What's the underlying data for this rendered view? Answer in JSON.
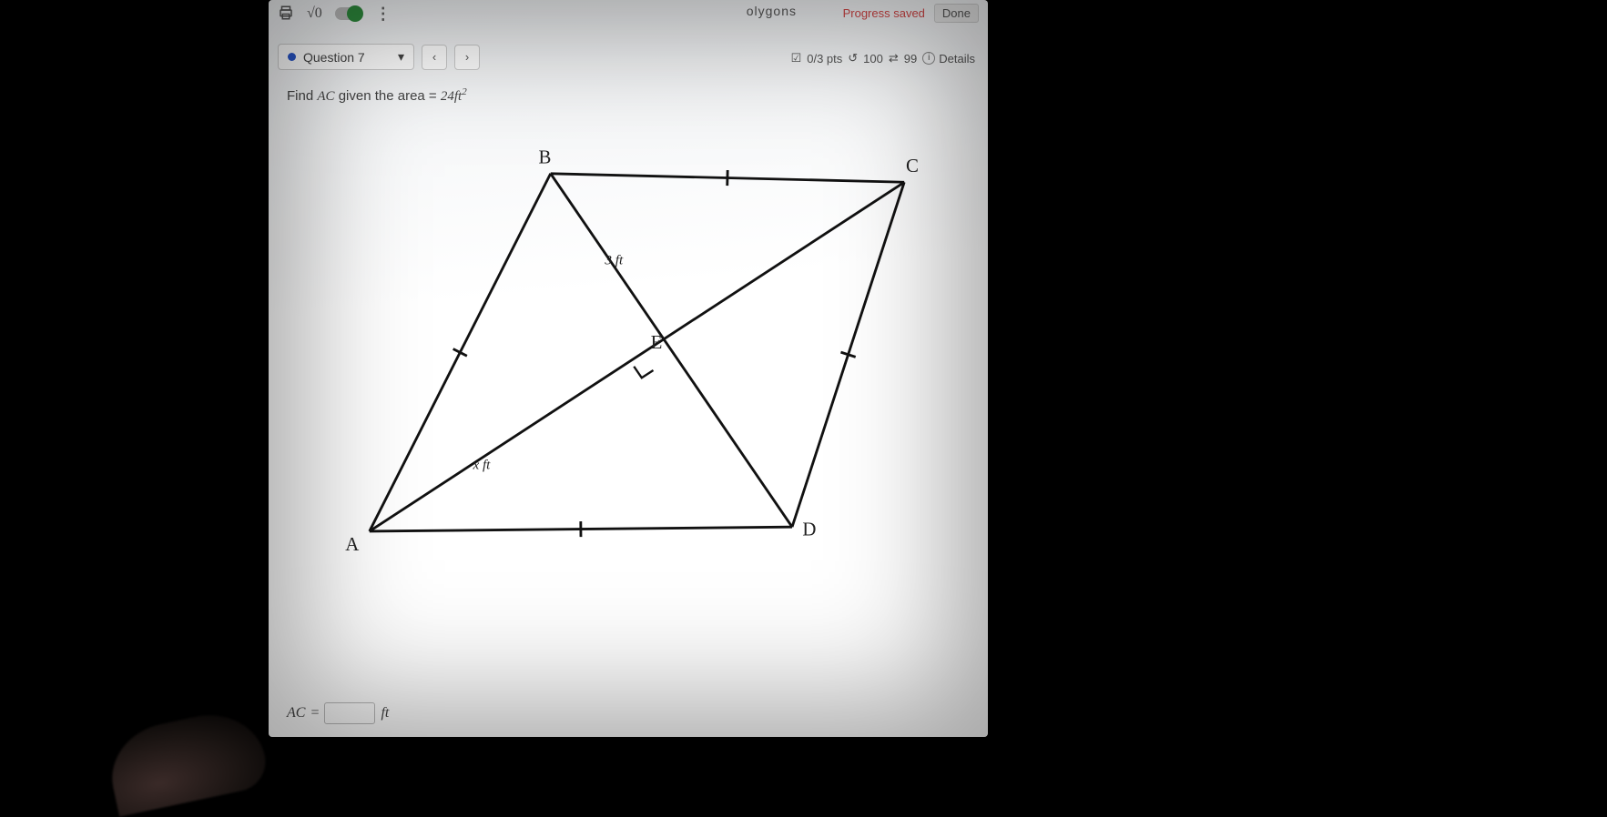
{
  "toolbar": {
    "sqrt_label": "√0",
    "breadcrumb_suffix": "olygons",
    "progress_label": "Progress saved",
    "done_label": "Done"
  },
  "question": {
    "label": "Question 7",
    "prev_symbol": "‹",
    "next_symbol": "›",
    "points_text": "0/3 pts",
    "retry_count": "100",
    "attempts_left": "99",
    "details_label": "Details"
  },
  "problem": {
    "prefix": "Find ",
    "segment": "AC",
    "middle": " given the area = ",
    "area_value": "24",
    "area_unit": "ft",
    "area_exp": "2"
  },
  "figure": {
    "labels": {
      "A": "A",
      "B": "B",
      "C": "C",
      "D": "D",
      "E": "E"
    },
    "be_label": "3 ft",
    "ae_label": "x ft",
    "points": {
      "A": [
        80,
        470
      ],
      "B": [
        290,
        55
      ],
      "C": [
        700,
        65
      ],
      "D": [
        570,
        465
      ],
      "E": [
        400,
        270
      ]
    },
    "stroke": "#111111",
    "stroke_width": 3,
    "label_font": "22px",
    "dim_font": "16px"
  },
  "answer": {
    "lhs": "AC",
    "eq": " = ",
    "unit": "ft",
    "value": ""
  }
}
